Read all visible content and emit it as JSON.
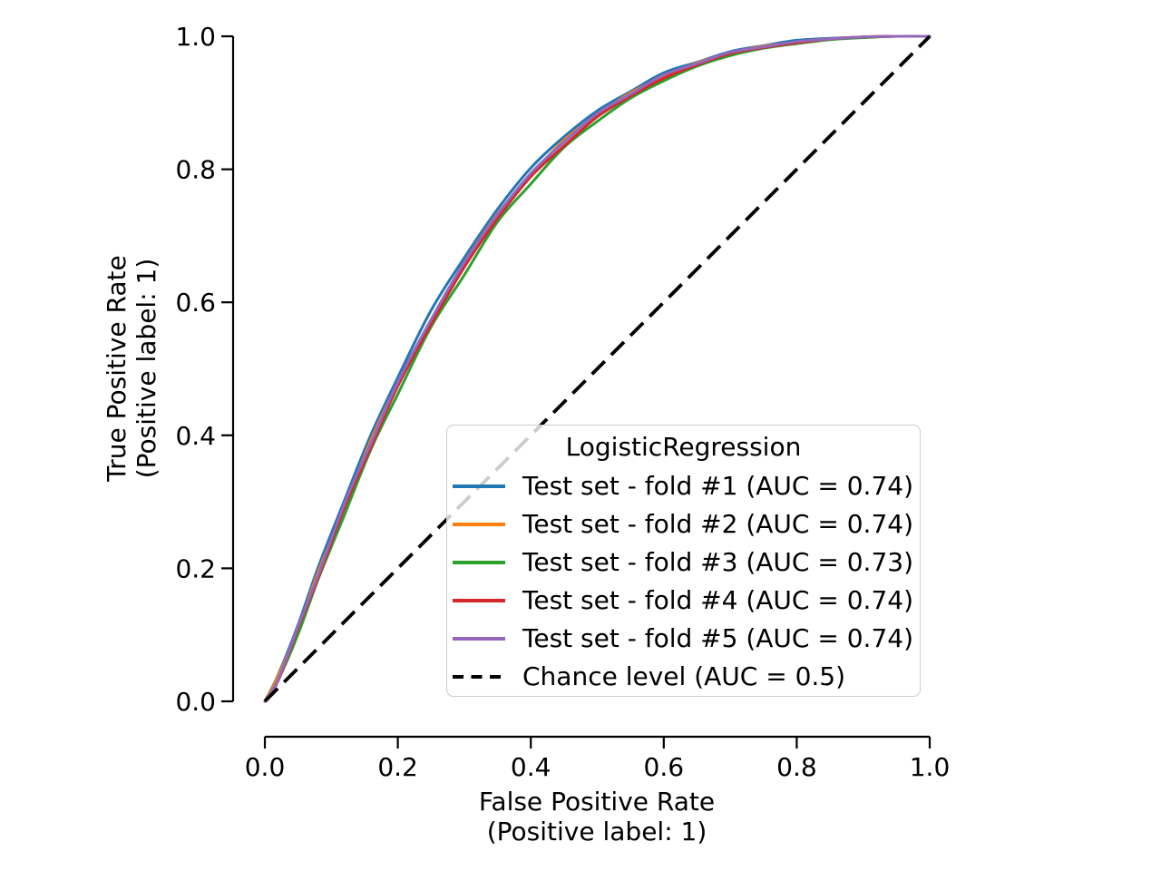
{
  "figure": {
    "background": "#ffffff",
    "text_color": "#000000"
  },
  "axes": {
    "xlabel_line1": "False Positive Rate",
    "xlabel_line2": "(Positive label: 1)",
    "ylabel_line1": "True Positive Rate",
    "ylabel_line2": "(Positive label: 1)",
    "xtick_labels": [
      "0.0",
      "0.2",
      "0.4",
      "0.6",
      "0.8",
      "1.0"
    ],
    "ytick_labels": [
      "0.0",
      "0.2",
      "0.4",
      "0.6",
      "0.8",
      "1.0"
    ]
  },
  "legend": {
    "title": "LogisticRegression",
    "entries": [
      {
        "label": "Test set - fold #1 (AUC = 0.74)",
        "color": "#1f77b4",
        "dashed": false
      },
      {
        "label": "Test set - fold #2 (AUC = 0.74)",
        "color": "#ff7f0e",
        "dashed": false
      },
      {
        "label": "Test set - fold #3 (AUC = 0.73)",
        "color": "#2ca02c",
        "dashed": false
      },
      {
        "label": "Test set - fold #4 (AUC = 0.74)",
        "color": "#d62728",
        "dashed": false
      },
      {
        "label": "Test set - fold #5 (AUC = 0.74)",
        "color": "#9467bd",
        "dashed": false
      },
      {
        "label": "Chance level (AUC = 0.5)",
        "color": "#000000",
        "dashed": true
      }
    ]
  },
  "chart_data": {
    "type": "line",
    "title": "",
    "xlabel": "False Positive Rate (Positive label: 1)",
    "ylabel": "True Positive Rate (Positive label: 1)",
    "xlim": [
      0,
      1
    ],
    "ylim": [
      0,
      1
    ],
    "xticks": [
      0,
      0.2,
      0.4,
      0.6,
      0.8,
      1.0
    ],
    "yticks": [
      0,
      0.2,
      0.4,
      0.6,
      0.8,
      1.0
    ],
    "grid": false,
    "legend_title": "LogisticRegression",
    "legend_position": "lower right",
    "x": [
      0,
      0.02,
      0.05,
      0.08,
      0.12,
      0.16,
      0.2,
      0.25,
      0.3,
      0.35,
      0.4,
      0.45,
      0.5,
      0.55,
      0.6,
      0.65,
      0.7,
      0.75,
      0.8,
      0.85,
      0.9,
      0.95,
      1.0
    ],
    "series": [
      {
        "name": "Test set - fold #1 (AUC = 0.74)",
        "auc": 0.74,
        "color": "#1f77b4",
        "y": [
          0,
          0.04,
          0.115,
          0.201,
          0.303,
          0.402,
          0.487,
          0.588,
          0.667,
          0.74,
          0.802,
          0.849,
          0.888,
          0.917,
          0.945,
          0.961,
          0.977,
          0.986,
          0.994,
          0.997,
          0.999,
          1.0,
          1.0
        ]
      },
      {
        "name": "Test set - fold #2 (AUC = 0.74)",
        "auc": 0.74,
        "color": "#ff7f0e",
        "y": [
          0,
          0.038,
          0.11,
          0.194,
          0.293,
          0.394,
          0.479,
          0.574,
          0.66,
          0.733,
          0.791,
          0.844,
          0.882,
          0.915,
          0.939,
          0.96,
          0.975,
          0.985,
          0.991,
          0.996,
          0.999,
          1.0,
          1.0
        ]
      },
      {
        "name": "Test set - fold #3 (AUC = 0.73)",
        "auc": 0.73,
        "color": "#2ca02c",
        "y": [
          0,
          0.032,
          0.101,
          0.183,
          0.281,
          0.38,
          0.462,
          0.563,
          0.641,
          0.721,
          0.778,
          0.833,
          0.872,
          0.907,
          0.933,
          0.955,
          0.971,
          0.982,
          0.989,
          0.995,
          0.998,
          1.0,
          1.0
        ]
      },
      {
        "name": "Test set - fold #4 (AUC = 0.74)",
        "auc": 0.74,
        "color": "#d62728",
        "y": [
          0,
          0.031,
          0.11,
          0.185,
          0.292,
          0.383,
          0.474,
          0.567,
          0.653,
          0.726,
          0.789,
          0.835,
          0.879,
          0.91,
          0.937,
          0.957,
          0.974,
          0.983,
          0.99,
          0.996,
          0.999,
          1.0,
          1.0
        ]
      },
      {
        "name": "Test set - fold #5 (AUC = 0.74)",
        "auc": 0.74,
        "color": "#9467bd",
        "y": [
          0,
          0.032,
          0.113,
          0.189,
          0.298,
          0.389,
          0.48,
          0.574,
          0.66,
          0.732,
          0.794,
          0.841,
          0.884,
          0.913,
          0.942,
          0.959,
          0.976,
          0.984,
          0.992,
          0.996,
          0.999,
          1.0,
          1.0
        ]
      }
    ],
    "chance_level": {
      "label": "Chance level (AUC = 0.5)",
      "auc": 0.5,
      "color": "#000000",
      "style": "dashed",
      "x": [
        0,
        1
      ],
      "y": [
        0,
        1
      ]
    }
  }
}
